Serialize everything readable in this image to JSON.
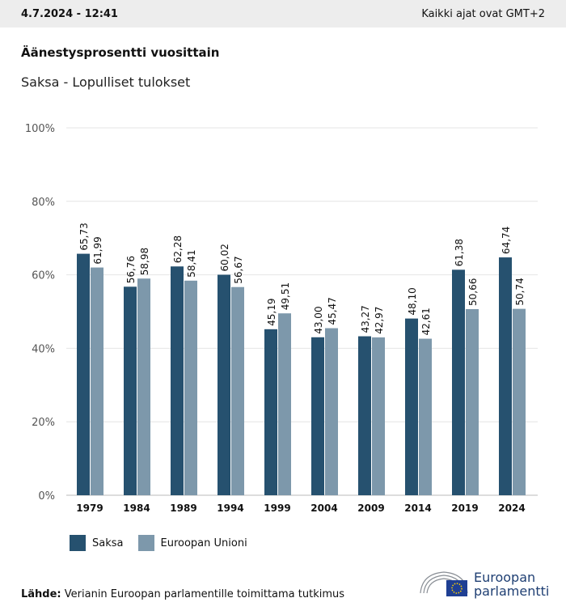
{
  "header": {
    "datetime": "4.7.2024 - 12:41",
    "timezone_note": "Kaikki ajat ovat GMT+2"
  },
  "title": "Äänestysprosentti vuosittain",
  "subtitle": "Saksa - Lopulliset tulokset",
  "chart_data": {
    "type": "bar",
    "categories": [
      "1979",
      "1984",
      "1989",
      "1994",
      "1999",
      "2004",
      "2009",
      "2014",
      "2019",
      "2024"
    ],
    "series": [
      {
        "name": "Saksa",
        "color": "#26516f",
        "values": [
          65.73,
          56.76,
          62.28,
          60.02,
          45.19,
          43.0,
          43.27,
          48.1,
          61.38,
          64.74
        ],
        "labels": [
          "65,73",
          "56,76",
          "62,28",
          "60,02",
          "45,19",
          "43,00",
          "43,27",
          "48,10",
          "61,38",
          "64,74"
        ]
      },
      {
        "name": "Euroopan Unioni",
        "color": "#7d98ab",
        "values": [
          61.99,
          58.98,
          58.41,
          56.67,
          49.51,
          45.47,
          42.97,
          42.61,
          50.66,
          50.74
        ],
        "labels": [
          "61,99",
          "58,98",
          "58,41",
          "56,67",
          "49,51",
          "45,47",
          "42,97",
          "42,61",
          "50,66",
          "50,74"
        ]
      }
    ],
    "yticks": [
      "0%",
      "20%",
      "40%",
      "60%",
      "80%",
      "100%"
    ],
    "ylim": [
      0,
      100
    ],
    "grid": true,
    "legend": "bottom-left"
  },
  "source": {
    "label": "Lähde:",
    "text": "Verianin Euroopan parlamentille toimittama tutkimus"
  },
  "logo": {
    "line1": "Euroopan",
    "line2": "parlamentti"
  }
}
